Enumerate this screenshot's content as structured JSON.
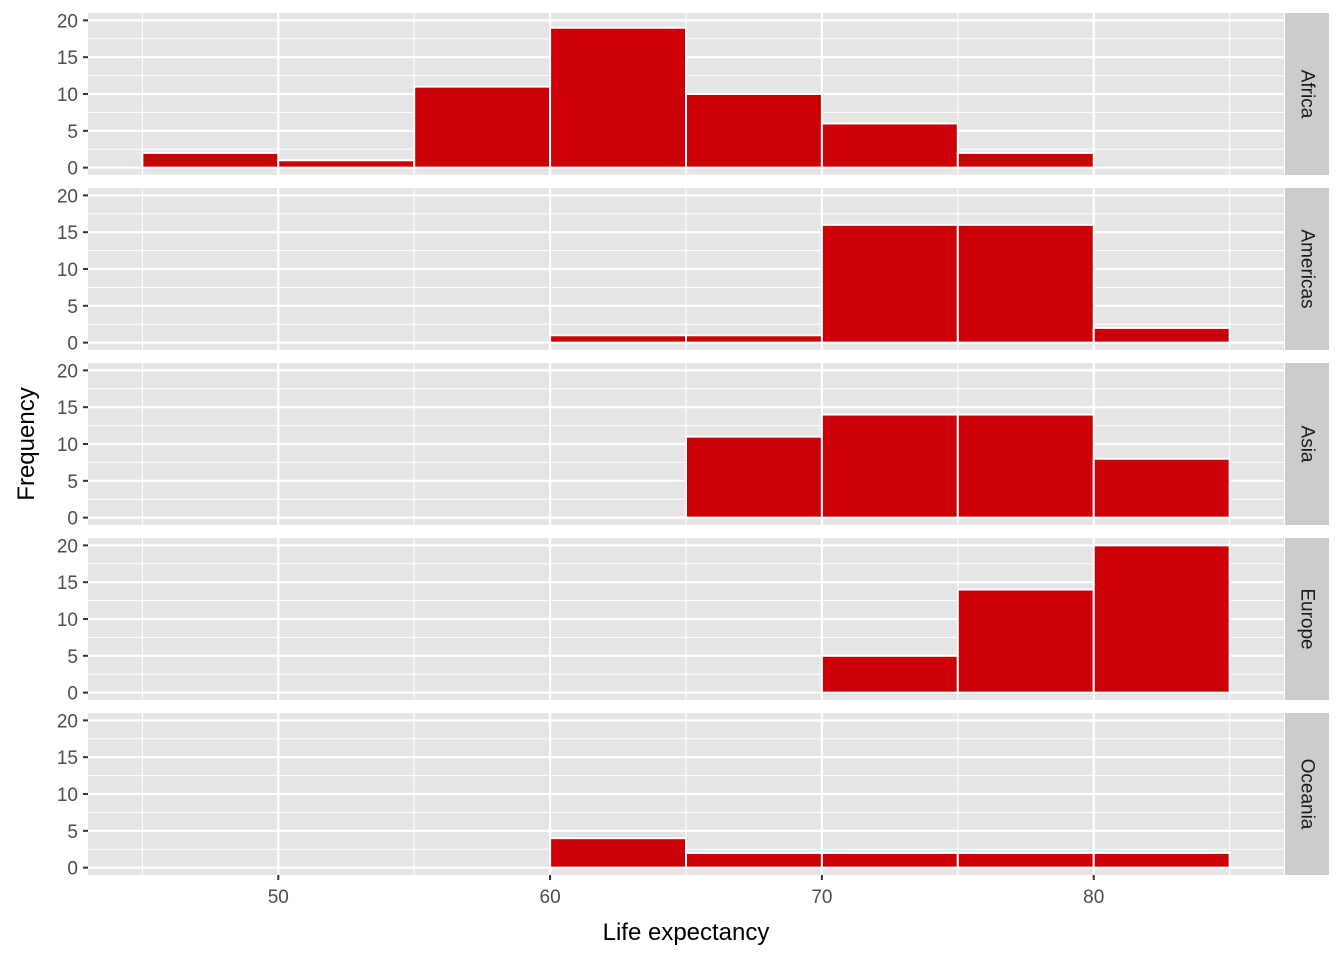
{
  "chart_data": {
    "type": "bar",
    "xlabel": "Life expectancy",
    "ylabel": "Frequency",
    "xlim": [
      43,
      87
    ],
    "ylim": [
      -1,
      21
    ],
    "x_ticks": [
      50,
      60,
      70,
      80
    ],
    "y_ticks": [
      0,
      5,
      10,
      15,
      20
    ],
    "bin_width": 5,
    "bin_starts": [
      45,
      50,
      55,
      60,
      65,
      70,
      75,
      80
    ],
    "panels": [
      {
        "name": "Africa",
        "values": [
          2,
          1,
          11,
          19,
          10,
          6,
          2,
          0
        ]
      },
      {
        "name": "Americas",
        "values": [
          0,
          0,
          0,
          1,
          1,
          16,
          16,
          2
        ]
      },
      {
        "name": "Asia",
        "values": [
          0,
          0,
          0,
          0,
          11,
          14,
          14,
          8
        ]
      },
      {
        "name": "Europe",
        "values": [
          0,
          0,
          0,
          0,
          0,
          5,
          14,
          20
        ]
      },
      {
        "name": "Oceania",
        "values": [
          0,
          0,
          0,
          4,
          2,
          2,
          2,
          2
        ]
      }
    ],
    "colors": {
      "bar_fill": "#cc0007",
      "bar_outline": "#ffffff",
      "panel_bg": "#e5e5e5",
      "strip_bg": "#cccccc",
      "grid": "#ffffff"
    },
    "grid": true,
    "legend": "none"
  }
}
